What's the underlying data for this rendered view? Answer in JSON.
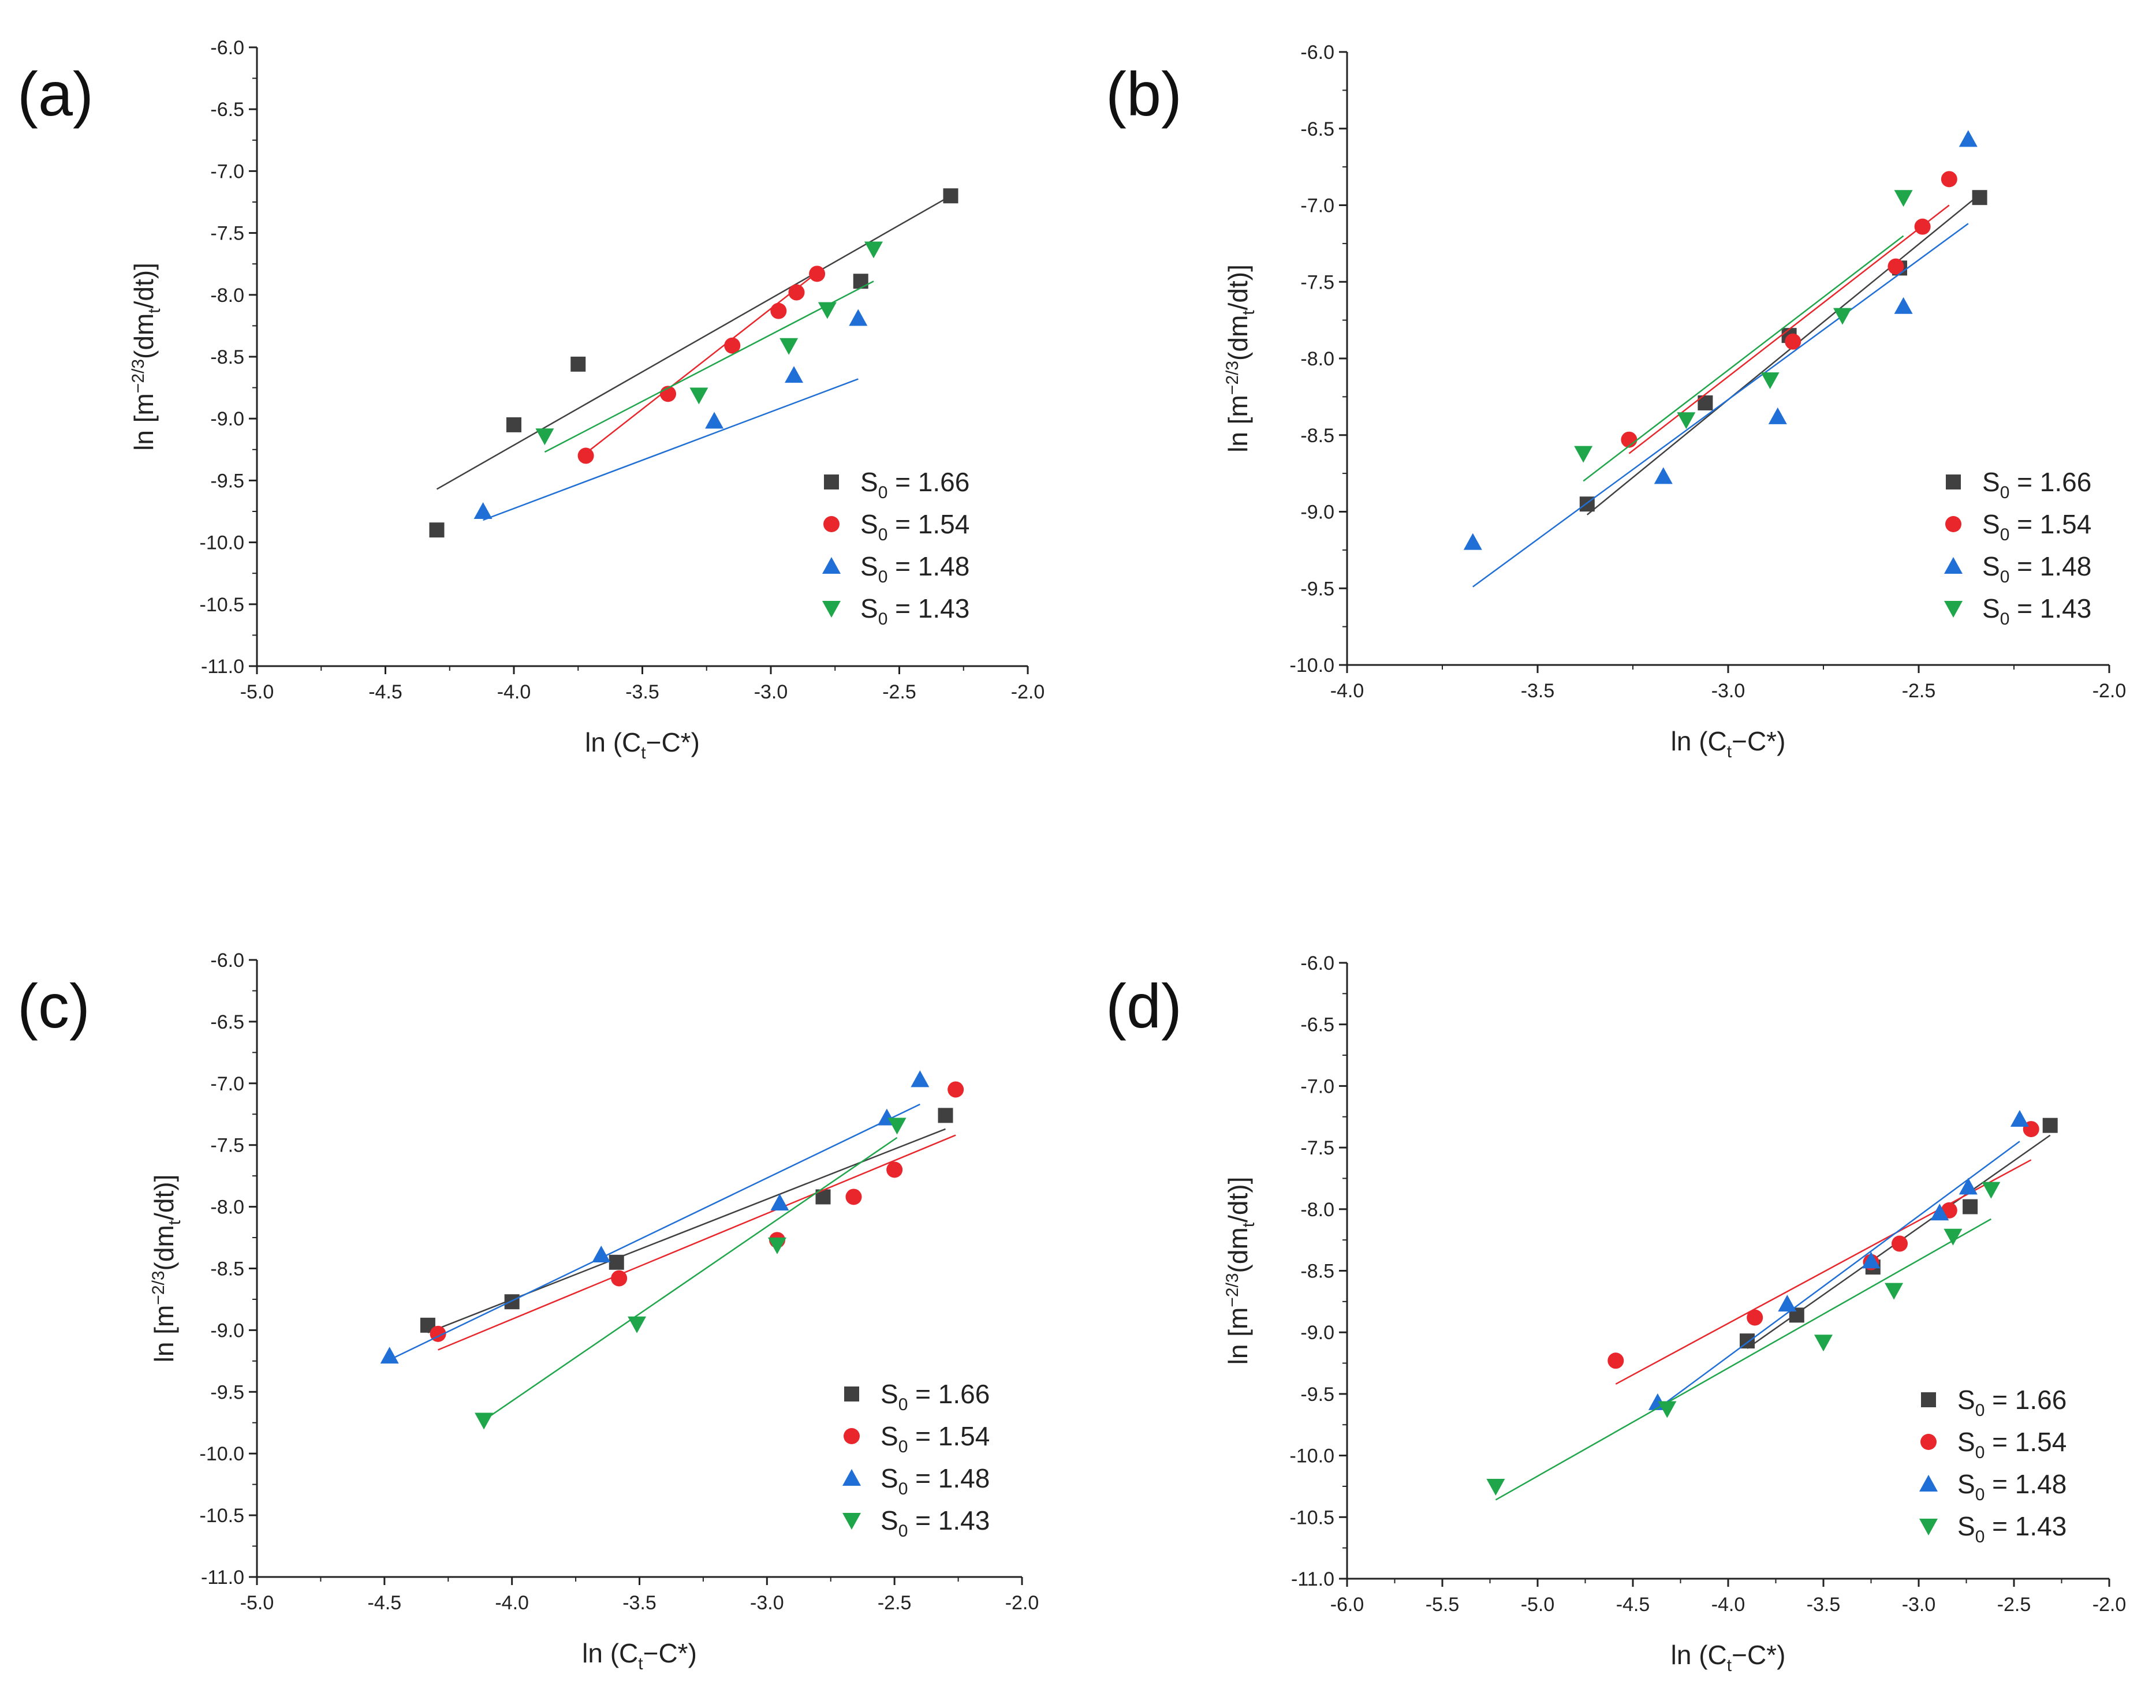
{
  "series_colors": [
    "#404040",
    "#e8262b",
    "#1f6fd6",
    "#1fa64b"
  ],
  "marker_shapes": [
    "square",
    "circle",
    "triangle-up",
    "triangle-down"
  ],
  "chart_data": [
    {
      "type": "scatter",
      "panel_label": "(a)",
      "xlabel_main": "ln (C",
      "xlabel_sub": "t",
      "xlabel_tail": "−C*)",
      "ylabel_head": "ln [m",
      "ylabel_sup": "−2/3",
      "ylabel_mid": "(dm",
      "ylabel_sub": "t",
      "ylabel_tail": "/dt)]",
      "xlim": [
        -5.0,
        -2.0
      ],
      "ylim": [
        -11.0,
        -6.0
      ],
      "xticks": [
        "-5.0",
        "-4.5",
        "-4.0",
        "-3.5",
        "-3.0",
        "-2.5",
        "-2.0"
      ],
      "yticks": [
        "-11.0",
        "-10.5",
        "-10.0",
        "-9.5",
        "-9.0",
        "-8.5",
        "-8.0",
        "-7.5",
        "-7.0",
        "-6.5",
        "-6.0"
      ],
      "legend_position": "bottom-right",
      "series": [
        {
          "name": "S0 = 1.66",
          "legend_head": "S",
          "legend_sub": "0",
          "legend_tail": " = 1.66",
          "x": [
            -4.3,
            -4.0,
            -3.75,
            -2.65,
            -2.3
          ],
          "y": [
            -9.9,
            -9.05,
            -8.56,
            -7.89,
            -7.2
          ],
          "fit": [
            [
              -4.3,
              -9.57
            ],
            [
              -2.3,
              -7.2
            ]
          ]
        },
        {
          "name": "S0 = 1.54",
          "legend_head": "S",
          "legend_sub": "0",
          "legend_tail": " = 1.54",
          "x": [
            -3.72,
            -3.4,
            -3.15,
            -2.97,
            -2.9,
            -2.82
          ],
          "y": [
            -9.3,
            -8.8,
            -8.41,
            -8.13,
            -7.98,
            -7.83
          ],
          "fit": [
            [
              -3.72,
              -9.28
            ],
            [
              -2.82,
              -7.82
            ]
          ]
        },
        {
          "name": "S0 = 1.48",
          "legend_head": "S",
          "legend_sub": "0",
          "legend_tail": " = 1.48",
          "x": [
            -4.12,
            -3.22,
            -2.91,
            -2.66
          ],
          "y": [
            -9.75,
            -9.02,
            -8.65,
            -8.19
          ],
          "fit": [
            [
              -4.12,
              -9.82
            ],
            [
              -2.66,
              -8.68
            ]
          ]
        },
        {
          "name": "S0 = 1.43",
          "legend_head": "S",
          "legend_sub": "0",
          "legend_tail": " = 1.43",
          "x": [
            -3.88,
            -3.28,
            -2.93,
            -2.78,
            -2.6
          ],
          "y": [
            -9.14,
            -8.81,
            -8.41,
            -8.12,
            -7.63
          ],
          "fit": [
            [
              -3.88,
              -9.27
            ],
            [
              -2.6,
              -7.89
            ]
          ]
        }
      ]
    },
    {
      "type": "scatter",
      "panel_label": "(b)",
      "xlabel_main": "ln (C",
      "xlabel_sub": "t",
      "xlabel_tail": "−C*)",
      "ylabel_head": "ln [m",
      "ylabel_sup": "−2/3",
      "ylabel_mid": "(dm",
      "ylabel_sub": "t",
      "ylabel_tail": "/dt)]",
      "xlim": [
        -4.0,
        -2.0
      ],
      "ylim": [
        -10.0,
        -6.0
      ],
      "xticks": [
        "-4.0",
        "-3.5",
        "-3.0",
        "-2.5",
        "-2.0"
      ],
      "yticks": [
        "-10.0",
        "-9.5",
        "-9.0",
        "-8.5",
        "-8.0",
        "-7.5",
        "-7.0",
        "-6.5",
        "-6.0"
      ],
      "legend_position": "bottom-right",
      "series": [
        {
          "name": "S0 = 1.66",
          "legend_head": "S",
          "legend_sub": "0",
          "legend_tail": " = 1.66",
          "x": [
            -3.37,
            -3.06,
            -2.84,
            -2.55,
            -2.34
          ],
          "y": [
            -8.95,
            -8.29,
            -7.85,
            -7.41,
            -6.95
          ],
          "fit": [
            [
              -3.37,
              -9.02
            ],
            [
              -2.34,
              -6.93
            ]
          ]
        },
        {
          "name": "S0 = 1.54",
          "legend_head": "S",
          "legend_sub": "0",
          "legend_tail": " = 1.54",
          "x": [
            -3.26,
            -2.83,
            -2.56,
            -2.49,
            -2.42
          ],
          "y": [
            -8.53,
            -7.89,
            -7.4,
            -7.14,
            -6.83
          ],
          "fit": [
            [
              -3.26,
              -8.62
            ],
            [
              -2.42,
              -7.0
            ]
          ]
        },
        {
          "name": "S0 = 1.48",
          "legend_head": "S",
          "legend_sub": "0",
          "legend_tail": " = 1.48",
          "x": [
            -3.67,
            -3.17,
            -2.87,
            -2.54,
            -2.37
          ],
          "y": [
            -9.2,
            -8.77,
            -8.38,
            -7.66,
            -6.57
          ],
          "fit": [
            [
              -3.67,
              -9.49
            ],
            [
              -2.37,
              -7.12
            ]
          ]
        },
        {
          "name": "S0 = 1.43",
          "legend_head": "S",
          "legend_sub": "0",
          "legend_tail": " = 1.43",
          "x": [
            -3.38,
            -3.11,
            -2.89,
            -2.7,
            -2.54
          ],
          "y": [
            -8.62,
            -8.4,
            -8.14,
            -7.72,
            -6.95
          ],
          "fit": [
            [
              -3.38,
              -8.8
            ],
            [
              -2.54,
              -7.2
            ]
          ]
        }
      ]
    },
    {
      "type": "scatter",
      "panel_label": "(c)",
      "xlabel_main": "ln (C",
      "xlabel_sub": "t",
      "xlabel_tail": "−C*)",
      "ylabel_head": "ln [m",
      "ylabel_sup": "−2/3",
      "ylabel_mid": "(dm",
      "ylabel_sub": "t",
      "ylabel_tail": "/dt)]",
      "xlim": [
        -5.0,
        -2.0
      ],
      "ylim": [
        -11.0,
        -6.0
      ],
      "xticks": [
        "-5.0",
        "-4.5",
        "-4.0",
        "-3.5",
        "-3.0",
        "-2.5",
        "-2.0"
      ],
      "yticks": [
        "-11.0",
        "-10.5",
        "-10.0",
        "-9.5",
        "-9.0",
        "-8.5",
        "-8.0",
        "-7.5",
        "-7.0",
        "-6.5",
        "-6.0"
      ],
      "legend_position": "bottom-right",
      "series": [
        {
          "name": "S0 = 1.66",
          "legend_head": "S",
          "legend_sub": "0",
          "legend_tail": " = 1.66",
          "x": [
            -4.33,
            -4.0,
            -3.59,
            -2.78,
            -2.3
          ],
          "y": [
            -8.96,
            -8.77,
            -8.45,
            -7.92,
            -7.26
          ],
          "fit": [
            [
              -4.33,
              -9.02
            ],
            [
              -2.3,
              -7.37
            ]
          ]
        },
        {
          "name": "S0 = 1.54",
          "legend_head": "S",
          "legend_sub": "0",
          "legend_tail": " = 1.54",
          "x": [
            -4.29,
            -3.58,
            -2.96,
            -2.66,
            -2.5,
            -2.26
          ],
          "y": [
            -9.03,
            -8.58,
            -8.27,
            -7.92,
            -7.7,
            -7.05
          ],
          "fit": [
            [
              -4.29,
              -9.16
            ],
            [
              -2.26,
              -7.42
            ]
          ]
        },
        {
          "name": "S0 = 1.48",
          "legend_head": "S",
          "legend_sub": "0",
          "legend_tail": " = 1.48",
          "x": [
            -4.48,
            -3.65,
            -2.95,
            -2.53,
            -2.4
          ],
          "y": [
            -9.21,
            -8.39,
            -7.97,
            -7.28,
            -6.97
          ],
          "fit": [
            [
              -4.48,
              -9.24
            ],
            [
              -2.4,
              -7.17
            ]
          ]
        },
        {
          "name": "S0 = 1.43",
          "legend_head": "S",
          "legend_sub": "0",
          "legend_tail": " = 1.43",
          "x": [
            -4.11,
            -3.51,
            -2.96,
            -2.49
          ],
          "y": [
            -9.73,
            -8.95,
            -8.31,
            -7.34
          ],
          "fit": [
            [
              -4.11,
              -9.73
            ],
            [
              -2.49,
              -7.44
            ]
          ]
        }
      ]
    },
    {
      "type": "scatter",
      "panel_label": "(d)",
      "xlabel_main": "ln (C",
      "xlabel_sub": "t",
      "xlabel_tail": "−C*)",
      "ylabel_head": "ln [m",
      "ylabel_sup": "−2/3",
      "ylabel_mid": "(dm",
      "ylabel_sub": "t",
      "ylabel_tail": "/dt)]",
      "xlim": [
        -6.0,
        -2.0
      ],
      "ylim": [
        -11.0,
        -6.0
      ],
      "xticks": [
        "-6.0",
        "-5.5",
        "-5.0",
        "-4.5",
        "-4.0",
        "-3.5",
        "-3.0",
        "-2.5",
        "-2.0"
      ],
      "yticks": [
        "-11.0",
        "-10.5",
        "-10.0",
        "-9.5",
        "-9.0",
        "-8.5",
        "-8.0",
        "-7.5",
        "-7.0",
        "-6.5",
        "-6.0"
      ],
      "legend_position": "bottom-right",
      "series": [
        {
          "name": "S0 = 1.66",
          "legend_head": "S",
          "legend_sub": "0",
          "legend_tail": " = 1.66",
          "x": [
            -3.9,
            -3.64,
            -3.24,
            -2.73,
            -2.31
          ],
          "y": [
            -9.07,
            -8.86,
            -8.47,
            -7.98,
            -7.32
          ],
          "fit": [
            [
              -3.9,
              -9.13
            ],
            [
              -2.31,
              -7.4
            ]
          ]
        },
        {
          "name": "S0 = 1.54",
          "legend_head": "S",
          "legend_sub": "0",
          "legend_tail": " = 1.54",
          "x": [
            -4.59,
            -3.86,
            -3.25,
            -3.1,
            -2.84,
            -2.41
          ],
          "y": [
            -9.23,
            -8.88,
            -8.43,
            -8.28,
            -8.01,
            -7.35
          ],
          "fit": [
            [
              -4.59,
              -9.42
            ],
            [
              -2.41,
              -7.6
            ]
          ]
        },
        {
          "name": "S0 = 1.48",
          "legend_head": "S",
          "legend_sub": "0",
          "legend_tail": " = 1.48",
          "x": [
            -4.37,
            -3.69,
            -3.25,
            -2.89,
            -2.74,
            -2.47
          ],
          "y": [
            -9.57,
            -8.77,
            -8.42,
            -8.03,
            -7.82,
            -7.27
          ],
          "fit": [
            [
              -4.37,
              -9.62
            ],
            [
              -2.47,
              -7.45
            ]
          ]
        },
        {
          "name": "S0 = 1.43",
          "legend_head": "S",
          "legend_sub": "0",
          "legend_tail": " = 1.43",
          "x": [
            -5.22,
            -4.32,
            -3.5,
            -3.13,
            -2.82,
            -2.62
          ],
          "y": [
            -10.25,
            -9.62,
            -9.08,
            -8.66,
            -8.22,
            -7.84
          ],
          "fit": [
            [
              -5.22,
              -10.36
            ],
            [
              -2.62,
              -8.08
            ]
          ]
        }
      ]
    }
  ]
}
